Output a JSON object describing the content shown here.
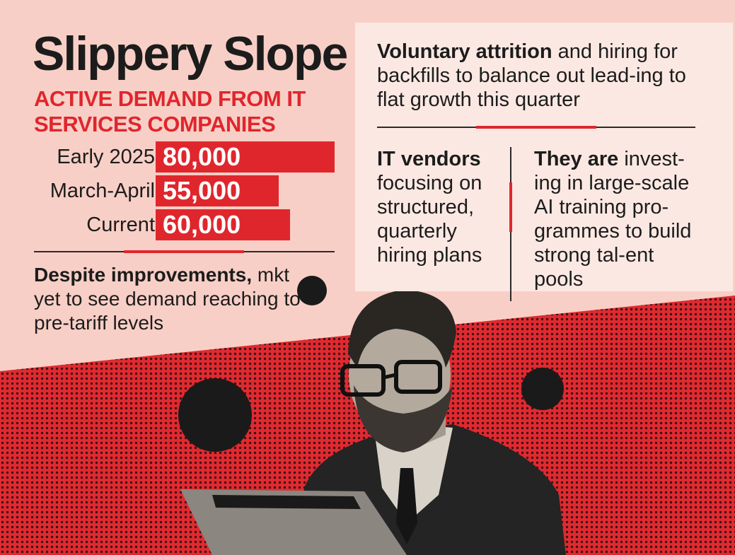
{
  "title": "Slippery Slope",
  "subtitle": "ACTIVE DEMAND FROM IT SERVICES COMPANIES",
  "chart_data": {
    "type": "bar",
    "orientation": "horizontal",
    "categories": [
      "Early 2025",
      "March-April",
      "Current"
    ],
    "values": [
      80000,
      55000,
      60000
    ],
    "value_labels": [
      "80,000",
      "55,000",
      "60,000"
    ],
    "title": "Slippery Slope",
    "subtitle": "ACTIVE DEMAND FROM IT SERVICES COMPANIES",
    "xlim": [
      0,
      80000
    ],
    "grid": false,
    "bar_color": "#e0262d"
  },
  "note": {
    "lead": "Despite improvements,",
    "rest": "mkt yet to see demand reaching to pre-tariff levels"
  },
  "panel": {
    "top_lead": "Voluntary attrition",
    "top_rest": "and hiring for backfills to balance out lead-ing to flat growth this quarter",
    "left_lead": "IT vendors",
    "left_rest": "focusing on structured, quarterly hiring plans",
    "right_lead": "They are",
    "right_rest": "invest-ing in large-scale AI training pro-grammes to build strong tal-ent pools"
  },
  "colors": {
    "accent": "#e0262d",
    "background": "#f8cfc6",
    "panel": "#fce8e2",
    "halftone": "#d8262d",
    "ink": "#1c1c1c"
  },
  "illustration": {
    "icon": "man-with-tablet-illustration"
  }
}
